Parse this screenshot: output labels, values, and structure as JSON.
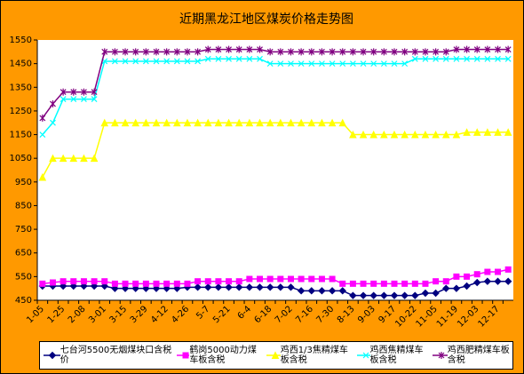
{
  "chart_data": {
    "type": "line",
    "title": "近期黑龙江地区煤炭价格走势图",
    "categories": [
      "1-05",
      null,
      "1-25",
      null,
      "2-08",
      null,
      "3-01",
      null,
      "3-15",
      null,
      "3-29",
      null,
      "4-12",
      null,
      "4-26",
      null,
      "5-7",
      null,
      "5-21",
      null,
      "6-4",
      null,
      "6-18",
      null,
      "7-02",
      null,
      "7-16",
      null,
      "7-30",
      null,
      "8-13",
      null,
      "9-03",
      null,
      "9-17",
      null,
      "10-22",
      null,
      "11-05",
      null,
      "11-19",
      null,
      "12-03",
      null,
      "12-17",
      null
    ],
    "ylim": [
      450,
      1550
    ],
    "yticks": [
      450,
      550,
      650,
      750,
      850,
      950,
      1050,
      1150,
      1250,
      1350,
      1450,
      1550
    ],
    "series": [
      {
        "name": "七台河5500无烟煤块口含税价",
        "color": "#000080",
        "marker": "diamond",
        "values": [
          510,
          510,
          510,
          510,
          510,
          510,
          510,
          500,
          500,
          500,
          500,
          500,
          500,
          500,
          505,
          505,
          505,
          505,
          505,
          505,
          505,
          505,
          505,
          505,
          505,
          490,
          490,
          490,
          490,
          490,
          470,
          470,
          470,
          470,
          470,
          470,
          470,
          480,
          480,
          500,
          500,
          510,
          525,
          530,
          530,
          530
        ]
      },
      {
        "name": "鹤岗5000动力煤车板含税",
        "color": "#FF00FF",
        "marker": "square",
        "values": [
          520,
          525,
          530,
          530,
          530,
          530,
          530,
          520,
          520,
          520,
          520,
          520,
          520,
          520,
          520,
          530,
          530,
          530,
          530,
          530,
          540,
          540,
          540,
          540,
          540,
          540,
          540,
          540,
          540,
          520,
          520,
          520,
          520,
          520,
          520,
          520,
          520,
          520,
          530,
          530,
          550,
          550,
          560,
          570,
          570,
          580
        ]
      },
      {
        "name": "鸡西1/3焦精煤车板含税",
        "color": "#FFFF00",
        "marker": "triangle",
        "values": [
          970,
          1050,
          1050,
          1050,
          1050,
          1050,
          1200,
          1200,
          1200,
          1200,
          1200,
          1200,
          1200,
          1200,
          1200,
          1200,
          1200,
          1200,
          1200,
          1200,
          1200,
          1200,
          1200,
          1200,
          1200,
          1200,
          1200,
          1200,
          1200,
          1200,
          1150,
          1150,
          1150,
          1150,
          1150,
          1150,
          1150,
          1150,
          1150,
          1150,
          1150,
          1160,
          1160,
          1160,
          1160,
          1160
        ]
      },
      {
        "name": "鸡西焦精煤车板含税",
        "color": "#00FFFF",
        "marker": "x",
        "values": [
          1150,
          1200,
          1300,
          1300,
          1300,
          1300,
          1460,
          1460,
          1460,
          1460,
          1460,
          1460,
          1460,
          1460,
          1460,
          1460,
          1470,
          1470,
          1470,
          1470,
          1470,
          1470,
          1450,
          1450,
          1450,
          1450,
          1450,
          1450,
          1450,
          1450,
          1450,
          1450,
          1450,
          1450,
          1450,
          1450,
          1470,
          1470,
          1470,
          1470,
          1470,
          1470,
          1470,
          1470,
          1470,
          1470
        ]
      },
      {
        "name": "鸡西肥精煤车板含税",
        "color": "#800080",
        "marker": "star",
        "values": [
          1220,
          1280,
          1330,
          1330,
          1330,
          1330,
          1500,
          1500,
          1500,
          1500,
          1500,
          1500,
          1500,
          1500,
          1500,
          1500,
          1510,
          1510,
          1510,
          1510,
          1510,
          1510,
          1500,
          1500,
          1500,
          1500,
          1500,
          1500,
          1500,
          1500,
          1500,
          1500,
          1500,
          1500,
          1500,
          1500,
          1500,
          1500,
          1500,
          1500,
          1510,
          1510,
          1510,
          1510,
          1510,
          1510
        ]
      }
    ]
  }
}
